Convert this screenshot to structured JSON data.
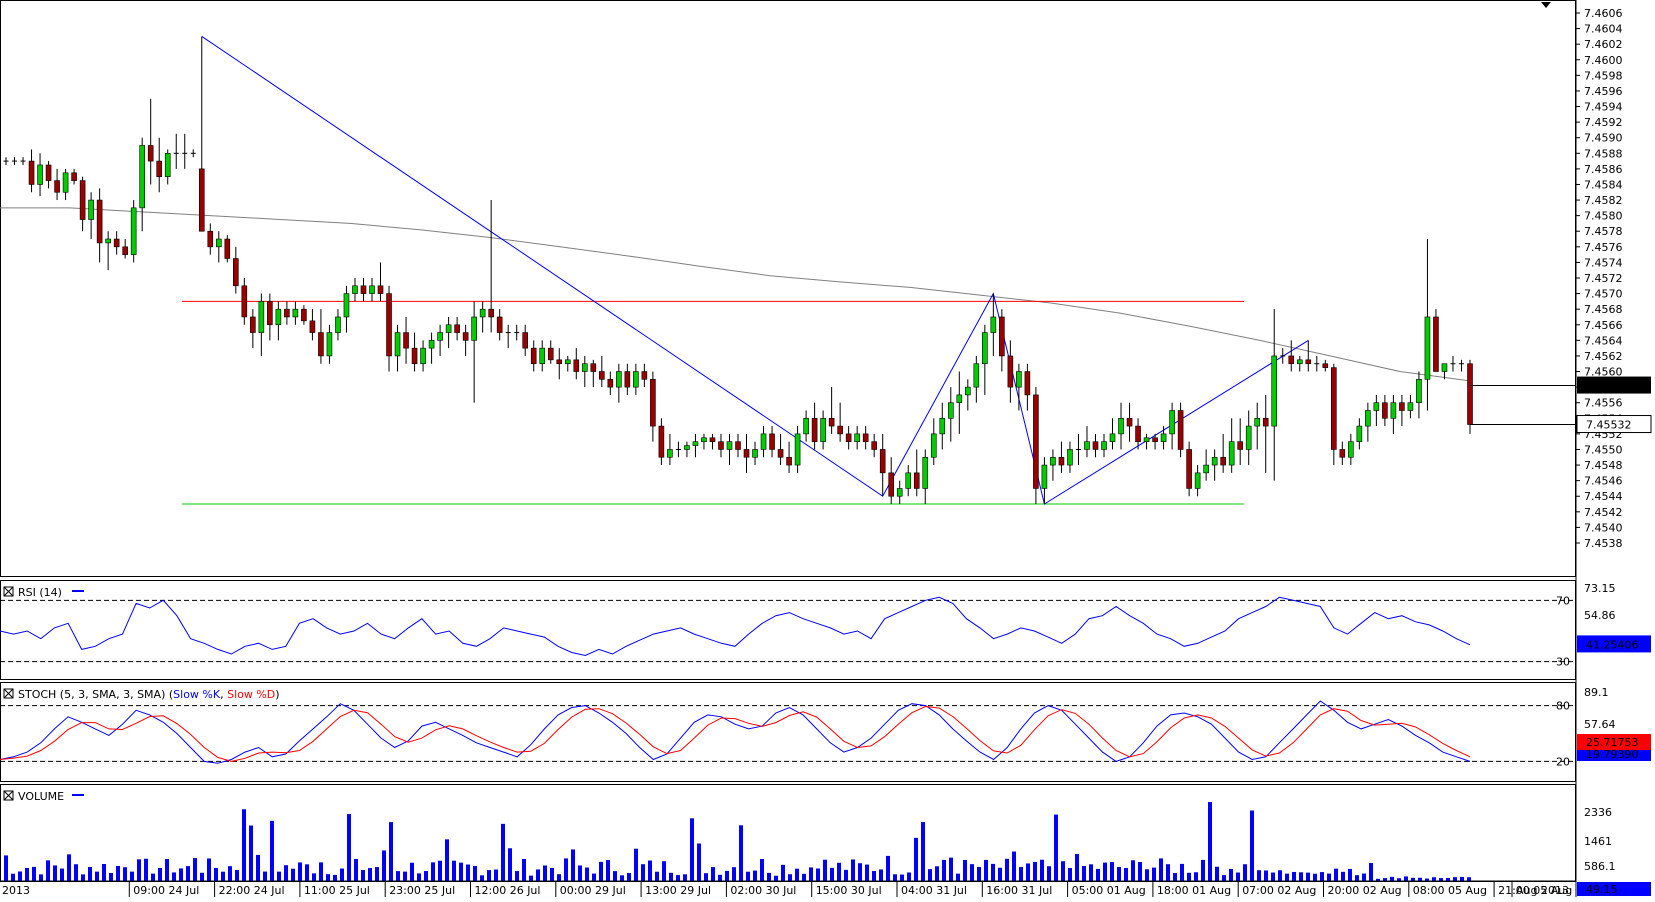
{
  "chart_data": {
    "type": "candlestick",
    "main": {
      "y_ticks": [
        "7.4606",
        "7.4604",
        "7.4602",
        "7.4600",
        "7.4598",
        "7.4596",
        "7.4594",
        "7.4592",
        "7.4590",
        "7.4588",
        "7.4586",
        "7.4584",
        "7.4582",
        "7.4580",
        "7.4578",
        "7.4576",
        "7.4574",
        "7.4572",
        "7.4570",
        "7.4568",
        "7.4566",
        "7.4564",
        "7.4562",
        "7.4560",
        "7.4558",
        "7.4556",
        "7.4554",
        "7.4552",
        "7.4550",
        "7.4548",
        "7.4546",
        "7.4544",
        "7.4542",
        "7.4540",
        "7.4538"
      ],
      "ylim": [
        7.4537,
        7.4606
      ],
      "current_price": "7.45582",
      "second_price": "7.45532",
      "resistance_level": 7.4569,
      "support_level": 7.4543,
      "colors": {
        "up": "#00cc00",
        "down": "#990000",
        "ma": "#808080",
        "resistance": "#ff0000",
        "support": "#00cc00",
        "pattern": "#0000ff"
      }
    },
    "rsi": {
      "title": "RSI (14)",
      "levels": [
        "70",
        "30"
      ],
      "y_ticks": [
        "73.15",
        "54.86",
        "36.58"
      ],
      "current": "41.25406"
    },
    "stoch": {
      "title": "STOCH (5, 3, SMA, 3, SMA)",
      "legend_k": "Slow %K",
      "legend_d": "Slow %D",
      "levels": [
        "80",
        "20"
      ],
      "y_ticks": [
        "89.1",
        "57.64"
      ],
      "current_d": "25.71753",
      "current_k": "19.79390"
    },
    "volume": {
      "title": "VOLUME",
      "y_ticks": [
        "2336",
        "1461",
        "586.1"
      ],
      "current": "49.15"
    },
    "x_labels": [
      "2013",
      "09:00 24 Jul",
      "22:00 24 Jul",
      "11:00 25 Jul",
      "23:00 25 Jul",
      "12:00 26 Jul",
      "00:00 29 Jul",
      "13:00 29 Jul",
      "02:00 30 Jul",
      "15:00 30 Jul",
      "04:00 31 Jul",
      "16:00 31 Jul",
      "05:00 01 Aug",
      "18:00 01 Aug",
      "07:00 02 Aug",
      "20:00 02 Aug",
      "08:00 05 Aug",
      "21:00 05 Aug",
      "Aug 2013"
    ],
    "candles": [
      [
        7.4587,
        7.45875,
        7.45865,
        7.4587
      ],
      [
        7.4587,
        7.45875,
        7.45865,
        7.4587
      ],
      [
        7.4587,
        7.45875,
        7.45865,
        7.4587
      ],
      [
        7.4587,
        7.45885,
        7.4583,
        7.4584
      ],
      [
        7.4584,
        7.4588,
        7.45825,
        7.45865
      ],
      [
        7.45865,
        7.4587,
        7.45835,
        7.45845
      ],
      [
        7.45845,
        7.4586,
        7.4582,
        7.4583
      ],
      [
        7.4583,
        7.4586,
        7.4582,
        7.45855
      ],
      [
        7.45855,
        7.4586,
        7.4584,
        7.45845
      ],
      [
        7.45845,
        7.4585,
        7.4578,
        7.45795
      ],
      [
        7.45795,
        7.4583,
        7.4577,
        7.4582
      ],
      [
        7.4582,
        7.45835,
        7.4574,
        7.45765
      ],
      [
        7.45765,
        7.4578,
        7.4573,
        7.4577
      ],
      [
        7.4577,
        7.4578,
        7.4575,
        7.4576
      ],
      [
        7.4576,
        7.4577,
        7.45745,
        7.4575
      ],
      [
        7.4575,
        7.4582,
        7.4574,
        7.4581
      ],
      [
        7.4581,
        7.459,
        7.4578,
        7.4589
      ],
      [
        7.4589,
        7.4595,
        7.4584,
        7.4587
      ],
      [
        7.4587,
        7.459,
        7.4583,
        7.4585
      ],
      [
        7.4585,
        7.45885,
        7.4584,
        7.4588
      ],
      [
        7.4588,
        7.45905,
        7.4586,
        7.4588
      ],
      [
        7.4588,
        7.45905,
        7.4586,
        7.4588
      ],
      [
        7.4588,
        7.45885,
        7.45875,
        7.4588
      ],
      [
        7.4586,
        7.4603,
        7.4578,
        7.4578
      ],
      [
        7.4578,
        7.4579,
        7.4575,
        7.4576
      ],
      [
        7.4576,
        7.4578,
        7.4574,
        7.4577
      ],
      [
        7.4577,
        7.45775,
        7.4574,
        7.45745
      ],
      [
        7.45745,
        7.4576,
        7.457,
        7.4571
      ],
      [
        7.4571,
        7.4572,
        7.4566,
        7.4567
      ],
      [
        7.4567,
        7.4568,
        7.4563,
        7.4565
      ],
      [
        7.4565,
        7.457,
        7.4562,
        7.4569
      ],
      [
        7.4569,
        7.457,
        7.4564,
        7.4566
      ],
      [
        7.4566,
        7.4569,
        7.4564,
        7.4568
      ],
      [
        7.4568,
        7.4569,
        7.4566,
        7.4567
      ],
      [
        7.4567,
        7.4569,
        7.4566,
        7.4568
      ],
      [
        7.4568,
        7.45685,
        7.4566,
        7.45665
      ],
      [
        7.45665,
        7.4568,
        7.4564,
        7.4565
      ],
      [
        7.4565,
        7.4568,
        7.4561,
        7.4562
      ],
      [
        7.4562,
        7.4566,
        7.4561,
        7.4565
      ],
      [
        7.4565,
        7.4568,
        7.4564,
        7.4567
      ],
      [
        7.4567,
        7.4571,
        7.4565,
        7.457
      ],
      [
        7.457,
        7.4572,
        7.4569,
        7.4571
      ],
      [
        7.4571,
        7.4572,
        7.4569,
        7.457
      ],
      [
        7.457,
        7.4572,
        7.4569,
        7.4571
      ],
      [
        7.4571,
        7.4574,
        7.4569,
        7.457
      ],
      [
        7.457,
        7.4571,
        7.456,
        7.4562
      ],
      [
        7.4562,
        7.4566,
        7.456,
        7.4565
      ],
      [
        7.4565,
        7.4567,
        7.4561,
        7.4563
      ],
      [
        7.4563,
        7.4565,
        7.456,
        7.4561
      ],
      [
        7.4561,
        7.4564,
        7.456,
        7.4563
      ],
      [
        7.4563,
        7.4565,
        7.4561,
        7.4564
      ],
      [
        7.4564,
        7.4566,
        7.4562,
        7.4565
      ],
      [
        7.4565,
        7.4567,
        7.4563,
        7.4566
      ],
      [
        7.4566,
        7.4567,
        7.4564,
        7.4565
      ],
      [
        7.4565,
        7.4566,
        7.4562,
        7.4564
      ],
      [
        7.4564,
        7.4569,
        7.4556,
        7.4567
      ],
      [
        7.4567,
        7.4569,
        7.4565,
        7.4568
      ],
      [
        7.4568,
        7.4582,
        7.4565,
        7.4567
      ],
      [
        7.4567,
        7.4568,
        7.4564,
        7.4565
      ],
      [
        7.4565,
        7.4566,
        7.4563,
        7.4565
      ],
      [
        7.4565,
        7.4566,
        7.4564,
        7.4565
      ],
      [
        7.4565,
        7.4566,
        7.4562,
        7.4563
      ],
      [
        7.4563,
        7.4564,
        7.456,
        7.4561
      ],
      [
        7.4561,
        7.4564,
        7.456,
        7.4563
      ],
      [
        7.4563,
        7.4564,
        7.4561,
        7.45615
      ],
      [
        7.45615,
        7.4563,
        7.4559,
        7.4561
      ],
      [
        7.4561,
        7.4562,
        7.456,
        7.45615
      ],
      [
        7.45615,
        7.4563,
        7.4559,
        7.456
      ],
      [
        7.456,
        7.4562,
        7.4558,
        7.4561
      ],
      [
        7.4561,
        7.45615,
        7.4558,
        7.456
      ],
      [
        7.456,
        7.4562,
        7.4558,
        7.4559
      ],
      [
        7.4559,
        7.456,
        7.4557,
        7.4558
      ],
      [
        7.4558,
        7.4561,
        7.4556,
        7.456
      ],
      [
        7.456,
        7.4561,
        7.4557,
        7.4558
      ],
      [
        7.4558,
        7.4561,
        7.4557,
        7.456
      ],
      [
        7.456,
        7.4561,
        7.4558,
        7.4559
      ],
      [
        7.4559,
        7.456,
        7.4551,
        7.4553
      ],
      [
        7.4553,
        7.4554,
        7.4548,
        7.4549
      ],
      [
        7.4549,
        7.4552,
        7.4548,
        7.455
      ],
      [
        7.455,
        7.4551,
        7.4549,
        7.455
      ],
      [
        7.455,
        7.4551,
        7.4549,
        7.45505
      ],
      [
        7.45505,
        7.4552,
        7.4549,
        7.4551
      ],
      [
        7.4551,
        7.4552,
        7.455,
        7.45515
      ],
      [
        7.45515,
        7.4552,
        7.455,
        7.4551
      ],
      [
        7.4551,
        7.4552,
        7.4549,
        7.455
      ],
      [
        7.455,
        7.4552,
        7.4548,
        7.4551
      ],
      [
        7.4551,
        7.4552,
        7.4549,
        7.455
      ],
      [
        7.455,
        7.4552,
        7.4547,
        7.4549
      ],
      [
        7.4549,
        7.4551,
        7.4548,
        7.455
      ],
      [
        7.455,
        7.4553,
        7.4549,
        7.4552
      ],
      [
        7.4552,
        7.4553,
        7.4549,
        7.455
      ],
      [
        7.455,
        7.4552,
        7.4548,
        7.4549
      ],
      [
        7.4549,
        7.4551,
        7.4547,
        7.4548
      ],
      [
        7.4548,
        7.4553,
        7.4547,
        7.4552
      ],
      [
        7.4552,
        7.4555,
        7.4551,
        7.4554
      ],
      [
        7.4554,
        7.4556,
        7.455,
        7.4551
      ],
      [
        7.4551,
        7.4555,
        7.455,
        7.4554
      ],
      [
        7.4554,
        7.4558,
        7.4552,
        7.4553
      ],
      [
        7.4553,
        7.4556,
        7.4551,
        7.4552
      ],
      [
        7.4552,
        7.4553,
        7.455,
        7.4551
      ],
      [
        7.4551,
        7.4553,
        7.455,
        7.4552
      ],
      [
        7.4552,
        7.4553,
        7.455,
        7.4551
      ],
      [
        7.4551,
        7.4552,
        7.4549,
        7.455
      ],
      [
        7.455,
        7.4552,
        7.4544,
        7.4547
      ],
      [
        7.4547,
        7.4549,
        7.4543,
        7.4544
      ],
      [
        7.4544,
        7.4546,
        7.4543,
        7.4545
      ],
      [
        7.4545,
        7.4548,
        7.4544,
        7.4547
      ],
      [
        7.4547,
        7.455,
        7.4544,
        7.4545
      ],
      [
        7.4545,
        7.455,
        7.4543,
        7.4549
      ],
      [
        7.4549,
        7.4554,
        7.4548,
        7.4552
      ],
      [
        7.4552,
        7.4556,
        7.455,
        7.4554
      ],
      [
        7.4554,
        7.4558,
        7.4551,
        7.4556
      ],
      [
        7.4556,
        7.456,
        7.4552,
        7.4557
      ],
      [
        7.4557,
        7.4559,
        7.4555,
        7.4558
      ],
      [
        7.4558,
        7.4562,
        7.4556,
        7.4561
      ],
      [
        7.4561,
        7.4566,
        7.4557,
        7.4565
      ],
      [
        7.4565,
        7.457,
        7.4562,
        7.4567
      ],
      [
        7.4567,
        7.4568,
        7.456,
        7.4562
      ],
      [
        7.4562,
        7.4564,
        7.4556,
        7.4558
      ],
      [
        7.4558,
        7.4561,
        7.4555,
        7.456
      ],
      [
        7.456,
        7.4561,
        7.4555,
        7.4557
      ],
      [
        7.4557,
        7.4558,
        7.4543,
        7.4545
      ],
      [
        7.4545,
        7.4549,
        7.4543,
        7.4548
      ],
      [
        7.4548,
        7.455,
        7.4546,
        7.4549
      ],
      [
        7.4549,
        7.4551,
        7.4547,
        7.4548
      ],
      [
        7.4548,
        7.4551,
        7.4547,
        7.455
      ],
      [
        7.455,
        7.4552,
        7.4548,
        7.455
      ],
      [
        7.455,
        7.4553,
        7.4549,
        7.4551
      ],
      [
        7.4551,
        7.4552,
        7.4549,
        7.455
      ],
      [
        7.455,
        7.4552,
        7.4549,
        7.4551
      ],
      [
        7.4551,
        7.4554,
        7.455,
        7.4552
      ],
      [
        7.4552,
        7.4556,
        7.455,
        7.4554
      ],
      [
        7.4554,
        7.4556,
        7.4551,
        7.4553
      ],
      [
        7.4553,
        7.4554,
        7.455,
        7.4551
      ],
      [
        7.4551,
        7.4552,
        7.455,
        7.45515
      ],
      [
        7.45515,
        7.4552,
        7.455,
        7.4551
      ],
      [
        7.4551,
        7.4553,
        7.455,
        7.4552
      ],
      [
        7.4552,
        7.4556,
        7.455,
        7.4555
      ],
      [
        7.4555,
        7.4556,
        7.4549,
        7.455
      ],
      [
        7.455,
        7.4551,
        7.4544,
        7.4545
      ],
      [
        7.4545,
        7.4548,
        7.4544,
        7.4547
      ],
      [
        7.4547,
        7.455,
        7.4546,
        7.4548
      ],
      [
        7.4548,
        7.455,
        7.4546,
        7.4549
      ],
      [
        7.4549,
        7.4552,
        7.4547,
        7.4548
      ],
      [
        7.4548,
        7.4554,
        7.4547,
        7.4551
      ],
      [
        7.4551,
        7.4554,
        7.4548,
        7.455
      ],
      [
        7.455,
        7.4555,
        7.4548,
        7.4553
      ],
      [
        7.4553,
        7.4556,
        7.455,
        7.4554
      ],
      [
        7.4554,
        7.4557,
        7.4547,
        7.4553
      ],
      [
        7.4553,
        7.4568,
        7.4546,
        7.4562
      ],
      [
        7.4562,
        7.4563,
        7.4561,
        7.4562
      ],
      [
        7.4562,
        7.4564,
        7.456,
        7.4561
      ],
      [
        7.4561,
        7.4562,
        7.456,
        7.45615
      ],
      [
        7.45615,
        7.4564,
        7.456,
        7.4561
      ],
      [
        7.4561,
        7.4562,
        7.456,
        7.4561
      ],
      [
        7.4561,
        7.45615,
        7.456,
        7.45605
      ],
      [
        7.45605,
        7.4561,
        7.4548,
        7.455
      ],
      [
        7.455,
        7.4551,
        7.4548,
        7.4549
      ],
      [
        7.4549,
        7.4552,
        7.4548,
        7.4551
      ],
      [
        7.4551,
        7.4554,
        7.455,
        7.4553
      ],
      [
        7.4553,
        7.4556,
        7.4551,
        7.4555
      ],
      [
        7.4555,
        7.4557,
        7.4553,
        7.4556
      ],
      [
        7.4556,
        7.4557,
        7.4553,
        7.4554
      ],
      [
        7.4554,
        7.4557,
        7.4552,
        7.4556
      ],
      [
        7.4556,
        7.4557,
        7.4553,
        7.4555
      ],
      [
        7.4555,
        7.4557,
        7.4554,
        7.4556
      ],
      [
        7.4556,
        7.456,
        7.4554,
        7.4559
      ],
      [
        7.4559,
        7.4577,
        7.4555,
        7.4567
      ],
      [
        7.4567,
        7.4568,
        7.456,
        7.456
      ],
      [
        7.456,
        7.4561,
        7.4559,
        7.4561
      ],
      [
        7.4561,
        7.4562,
        7.456,
        7.4561
      ],
      [
        7.4561,
        7.45615,
        7.456,
        7.4561
      ],
      [
        7.4561,
        7.45615,
        7.4552,
        7.45532
      ]
    ],
    "ma": [
      7.4581,
      7.4581,
      7.45805,
      7.458,
      7.45795,
      7.4579,
      7.45782,
      7.45772,
      7.4576,
      7.45748,
      7.45735,
      7.45723,
      7.45715,
      7.45708,
      7.45698,
      7.45688,
      7.45675,
      7.45658,
      7.4564,
      7.4562,
      7.456,
      7.45588
    ],
    "rsi_values": [
      50,
      48,
      50,
      45,
      52,
      55,
      38,
      40,
      45,
      48,
      68,
      65,
      70,
      60,
      45,
      42,
      38,
      35,
      40,
      42,
      38,
      40,
      55,
      58,
      52,
      48,
      50,
      55,
      48,
      45,
      52,
      58,
      48,
      50,
      42,
      40,
      45,
      52,
      50,
      48,
      46,
      40,
      36,
      34,
      38,
      35,
      40,
      44,
      48,
      50,
      52,
      48,
      45,
      42,
      40,
      48,
      55,
      60,
      62,
      58,
      55,
      52,
      48,
      50,
      45,
      58,
      62,
      66,
      70,
      72,
      68,
      58,
      52,
      45,
      48,
      52,
      50,
      46,
      42,
      48,
      58,
      60,
      66,
      60,
      55,
      48,
      45,
      40,
      42,
      46,
      50,
      58,
      62,
      66,
      72,
      70,
      68,
      66,
      52,
      48,
      55,
      62,
      58,
      60,
      56,
      54,
      50,
      45,
      41
    ],
    "stoch_k": [
      22,
      25,
      30,
      40,
      55,
      68,
      62,
      55,
      48,
      60,
      75,
      70,
      62,
      50,
      35,
      20,
      18,
      22,
      30,
      35,
      25,
      28,
      42,
      55,
      68,
      82,
      75,
      60,
      45,
      35,
      42,
      58,
      62,
      55,
      48,
      40,
      35,
      30,
      25,
      38,
      55,
      70,
      78,
      80,
      72,
      62,
      50,
      35,
      22,
      28,
      45,
      62,
      70,
      68,
      60,
      55,
      58,
      72,
      78,
      70,
      55,
      40,
      30,
      35,
      45,
      60,
      75,
      82,
      80,
      70,
      55,
      42,
      30,
      22,
      35,
      55,
      72,
      80,
      75,
      60,
      45,
      30,
      20,
      25,
      40,
      58,
      70,
      72,
      68,
      60,
      45,
      30,
      22,
      25,
      40,
      55,
      70,
      85,
      75,
      62,
      55,
      60,
      65,
      58,
      48,
      40,
      30,
      25,
      20
    ]
  }
}
